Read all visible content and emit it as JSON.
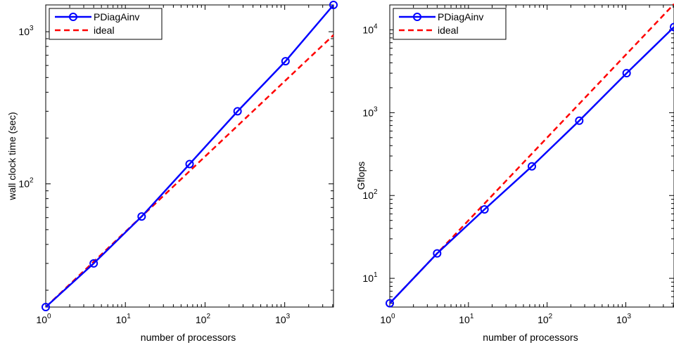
{
  "chart_data": [
    {
      "type": "line",
      "xscale": "log",
      "yscale": "log",
      "xlabel": "number of processors",
      "ylabel": "wall clock time (sec)",
      "xlim": [
        1,
        4096
      ],
      "ylim": [
        15.5,
        1500
      ],
      "xticks": [
        {
          "value": 1,
          "base": "10",
          "exp": "0"
        },
        {
          "value": 10,
          "base": "10",
          "exp": "1"
        },
        {
          "value": 100,
          "base": "10",
          "exp": "2"
        },
        {
          "value": 1000,
          "base": "10",
          "exp": "3"
        }
      ],
      "yticks": [
        {
          "value": 100,
          "base": "10",
          "exp": "2"
        },
        {
          "value": 1000,
          "base": "10",
          "exp": "3"
        }
      ],
      "legend_position": "top-left",
      "series": [
        {
          "name": "PDiagAinv",
          "color": "#0000ff",
          "style": "solid",
          "marker": "circle",
          "x": [
            1,
            4,
            16,
            64,
            256,
            1024,
            4096
          ],
          "y": [
            15.5,
            30,
            61,
            135,
            300,
            640,
            1500
          ]
        },
        {
          "name": "ideal",
          "color": "#ff0000",
          "style": "dashed",
          "marker": "none",
          "x": [
            1,
            4096
          ],
          "y": [
            15.5,
            950
          ]
        }
      ]
    },
    {
      "type": "line",
      "xscale": "log",
      "yscale": "log",
      "xlabel": "number of processors",
      "ylabel": "Gflops",
      "xlim": [
        1,
        4096
      ],
      "ylim": [
        4.5,
        20000
      ],
      "xticks": [
        {
          "value": 1,
          "base": "10",
          "exp": "0"
        },
        {
          "value": 10,
          "base": "10",
          "exp": "1"
        },
        {
          "value": 100,
          "base": "10",
          "exp": "2"
        },
        {
          "value": 1000,
          "base": "10",
          "exp": "3"
        }
      ],
      "yticks": [
        {
          "value": 10,
          "base": "10",
          "exp": "1"
        },
        {
          "value": 100,
          "base": "10",
          "exp": "2"
        },
        {
          "value": 1000,
          "base": "10",
          "exp": "3"
        },
        {
          "value": 10000,
          "base": "10",
          "exp": "4"
        }
      ],
      "legend_position": "top-left",
      "series": [
        {
          "name": "PDiagAinv",
          "color": "#0000ff",
          "style": "solid",
          "marker": "circle",
          "x": [
            1,
            4,
            16,
            64,
            256,
            1024,
            4096
          ],
          "y": [
            5,
            20,
            68,
            225,
            800,
            3000,
            10800
          ]
        },
        {
          "name": "ideal",
          "color": "#ff0000",
          "style": "dashed",
          "marker": "none",
          "x": [
            1,
            4096
          ],
          "y": [
            5,
            20480
          ]
        }
      ]
    }
  ]
}
